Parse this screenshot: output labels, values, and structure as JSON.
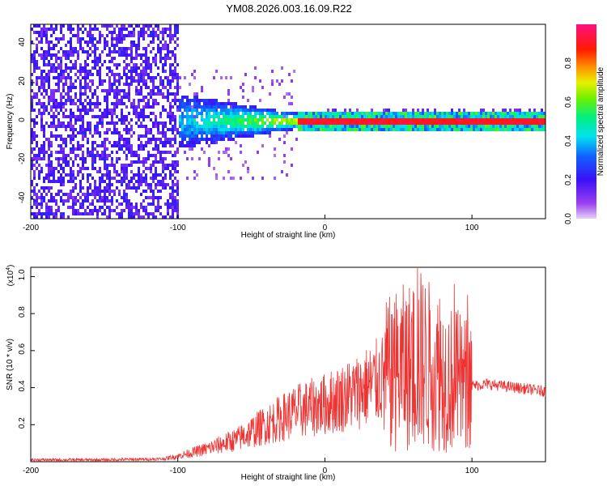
{
  "title": "YM08.2026.003.16.09.R22",
  "colors": {
    "snr_line": "#ee3333",
    "spectrogram_low": "#7a1cf0",
    "spectrogram_high": "#ff1010"
  },
  "chart_data": [
    {
      "type": "heatmap",
      "title": "YM08.2026.003.16.09.R22",
      "xlabel": "Height of straight line (km)",
      "ylabel": "Frequency (Hz)",
      "xlim": [
        -200,
        150
      ],
      "ylim": [
        -50,
        50
      ],
      "xticks": [
        -200,
        -100,
        0,
        100
      ],
      "yticks": [
        -40,
        -20,
        0,
        20,
        40
      ],
      "colorbar": {
        "label": "Normalized spectral amplitude",
        "range": [
          0.0,
          1.0
        ],
        "ticks": [
          "0.0",
          "0.2",
          "0.4",
          "0.6",
          "0.8"
        ],
        "colormap": "rainbow (purple-blue-cyan-green-yellow-red-magenta)"
      },
      "description_points": [
        {
          "x_range": [
            -200,
            -100
          ],
          "freq_spread_hz": 50,
          "amplitude": 0.15
        },
        {
          "x_range": [
            -100,
            -20
          ],
          "freq_spread_hz": 8,
          "amplitude": 0.45
        },
        {
          "x_range": [
            -20,
            95
          ],
          "freq_spread_hz": 2,
          "amplitude": 0.9
        },
        {
          "x_range": [
            95,
            150
          ],
          "freq_spread_hz": 2,
          "amplitude": 0.75
        }
      ]
    },
    {
      "type": "line",
      "xlabel": "Height of straight line (km)",
      "ylabel": "SNR (10 * v/v)",
      "scale_label": "(x10",
      "scale_exp": "4",
      "xlim": [
        -200,
        150
      ],
      "ylim": [
        0,
        1.05
      ],
      "xticks": [
        -200,
        -100,
        0,
        100
      ],
      "yticks": [
        0.2,
        0.4,
        0.6,
        0.8,
        1.0
      ],
      "ytick_labels": [
        "0.2",
        "0.4",
        "0.6",
        "0.8",
        "1.0"
      ],
      "series": [
        {
          "name": "SNR",
          "x": [
            -200,
            -150,
            -110,
            -100,
            -80,
            -60,
            -40,
            -20,
            0,
            20,
            35,
            50,
            60,
            65,
            75,
            85,
            95,
            100,
            110,
            130,
            150
          ],
          "y": [
            0.01,
            0.01,
            0.015,
            0.03,
            0.07,
            0.12,
            0.2,
            0.27,
            0.31,
            0.37,
            0.43,
            0.5,
            0.52,
            0.55,
            0.5,
            0.45,
            0.42,
            0.41,
            0.42,
            0.4,
            0.38
          ]
        }
      ],
      "peaks": [
        {
          "x": 63,
          "y": 1.05
        },
        {
          "x": 78,
          "y": 0.88
        },
        {
          "x": 88,
          "y": 0.96
        },
        {
          "x": 97,
          "y": 0.9
        },
        {
          "x": 57,
          "y": 0.85
        }
      ]
    }
  ]
}
